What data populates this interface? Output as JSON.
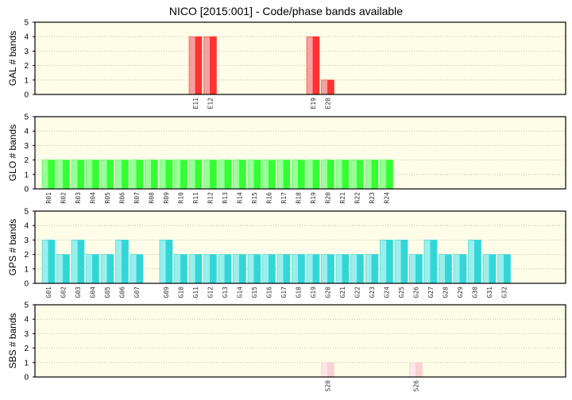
{
  "title": "NICO [2015:001] - Code/phase bands available",
  "colors": {
    "plot_bg": "#fdfde8",
    "grid": "#b4b4a0",
    "GAL": {
      "light": "#f4a0a0",
      "dark": "#ff3333"
    },
    "GLO": {
      "light": "#99ff99",
      "dark": "#33ff33"
    },
    "GPS": {
      "light": "#99eeee",
      "dark": "#33d6d6"
    },
    "SBS": {
      "light": "#fde6e6",
      "dark": "#fbd0d0"
    }
  },
  "chart_data": [
    {
      "type": "bar",
      "system": "GAL",
      "ylabel": "GAL # bands",
      "ylim": [
        0,
        5
      ],
      "yticks": [
        0,
        1,
        2,
        3,
        4,
        5
      ],
      "grid": true,
      "categories": [
        "E11",
        "E12",
        "E19",
        "E20"
      ],
      "slots": [
        11,
        12,
        19,
        20
      ],
      "values": [
        4,
        4,
        4,
        1
      ]
    },
    {
      "type": "bar",
      "system": "GLO",
      "ylabel": "GLO # bands",
      "ylim": [
        0,
        5
      ],
      "yticks": [
        0,
        1,
        2,
        3,
        4,
        5
      ],
      "grid": true,
      "categories": [
        "R01",
        "R02",
        "R03",
        "R04",
        "R05",
        "R06",
        "R07",
        "R08",
        "R09",
        "R10",
        "R11",
        "R12",
        "R13",
        "R14",
        "R15",
        "R16",
        "R17",
        "R18",
        "R19",
        "R20",
        "R21",
        "R22",
        "R23",
        "R24"
      ],
      "slots": [
        1,
        2,
        3,
        4,
        5,
        6,
        7,
        8,
        9,
        10,
        11,
        12,
        13,
        14,
        15,
        16,
        17,
        18,
        19,
        20,
        21,
        22,
        23,
        24
      ],
      "values": [
        2,
        2,
        2,
        2,
        2,
        2,
        2,
        2,
        2,
        2,
        2,
        2,
        2,
        2,
        2,
        2,
        2,
        2,
        2,
        2,
        2,
        2,
        2,
        2
      ]
    },
    {
      "type": "bar",
      "system": "GPS",
      "ylabel": "GPS # bands",
      "ylim": [
        0,
        5
      ],
      "yticks": [
        0,
        1,
        2,
        3,
        4,
        5
      ],
      "grid": true,
      "categories": [
        "G01",
        "G02",
        "G03",
        "G04",
        "G05",
        "G06",
        "G07",
        "G09",
        "G10",
        "G11",
        "G12",
        "G13",
        "G14",
        "G15",
        "G16",
        "G17",
        "G18",
        "G19",
        "G20",
        "G21",
        "G22",
        "G23",
        "G24",
        "G25",
        "G26",
        "G27",
        "G28",
        "G29",
        "G30",
        "G31",
        "G32"
      ],
      "slots": [
        1,
        2,
        3,
        4,
        5,
        6,
        7,
        9,
        10,
        11,
        12,
        13,
        14,
        15,
        16,
        17,
        18,
        19,
        20,
        21,
        22,
        23,
        24,
        25,
        26,
        27,
        28,
        29,
        30,
        31,
        32
      ],
      "values": [
        3,
        2,
        3,
        2,
        2,
        3,
        2,
        3,
        2,
        2,
        2,
        2,
        2,
        2,
        2,
        2,
        2,
        2,
        2,
        2,
        2,
        2,
        3,
        3,
        2,
        3,
        2,
        2,
        3,
        2,
        2
      ]
    },
    {
      "type": "bar",
      "system": "SBS",
      "ylabel": "SBS # bands",
      "ylim": [
        0,
        5
      ],
      "yticks": [
        0,
        1,
        2,
        3,
        4,
        5
      ],
      "grid": true,
      "categories": [
        "S20",
        "S26"
      ],
      "slots": [
        20,
        26
      ],
      "values": [
        1,
        1
      ]
    }
  ]
}
